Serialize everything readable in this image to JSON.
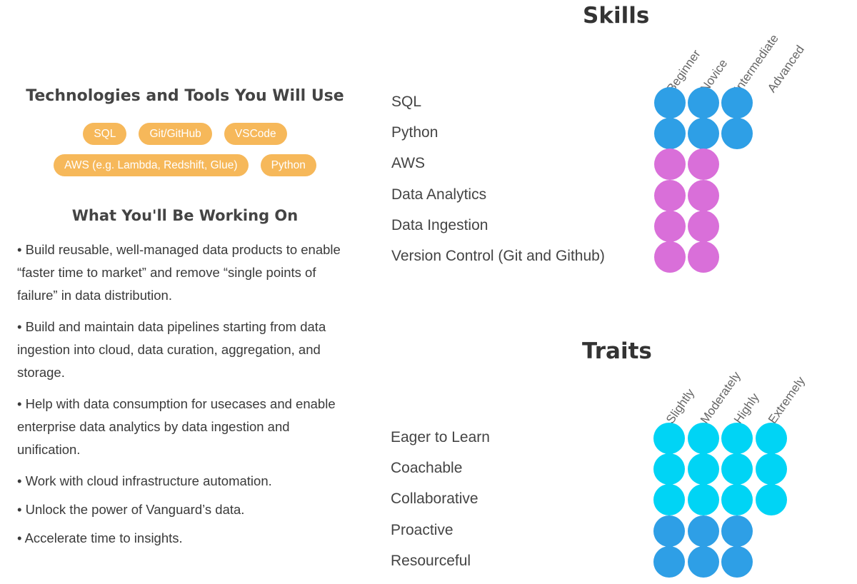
{
  "left": {
    "tech_title": "Technologies and Tools You Will Use",
    "tags_row_1": [
      "SQL",
      "Git/GitHub",
      "VSCode"
    ],
    "tags_row_2": [
      "AWS (e.g. Lambda, Redshift, Glue)",
      "Python"
    ],
    "work_title": "What You'll Be Working On",
    "bullets": [
      "• Build reusable, well-managed data products to enable “faster time to market” and remove “single points of failure” in data distribution.",
      "• Build and maintain data pipelines starting from data ingestion into cloud, data curation, aggregation, and storage.",
      "• Help with data consumption for usecases and enable enterprise data analytics by data ingestion and unification.",
      "• Work with cloud infrastructure automation.",
      "• Unlock the power of Vanguard’s data.",
      "• Accelerate time to insights."
    ]
  },
  "skills": {
    "title": "Skills",
    "levels": [
      "Beginner",
      "Novice",
      "Intermediate",
      "Advanced"
    ],
    "rows": [
      {
        "label": "SQL",
        "level": 3,
        "color": "#2e9fe6"
      },
      {
        "label": "Python",
        "level": 3,
        "color": "#2e9fe6"
      },
      {
        "label": "AWS",
        "level": 2,
        "color": "#d96fd9"
      },
      {
        "label": "Data Analytics",
        "level": 2,
        "color": "#d96fd9"
      },
      {
        "label": "Data Ingestion",
        "level": 2,
        "color": "#d96fd9"
      },
      {
        "label": "Version Control (Git and Github)",
        "level": 2,
        "color": "#d96fd9"
      }
    ]
  },
  "traits": {
    "title": "Traits",
    "levels": [
      "Slightly",
      "Moderately",
      "Highly",
      "Extremely"
    ],
    "rows": [
      {
        "label": "Eager to Learn",
        "level": 4,
        "color": "#00d4f5"
      },
      {
        "label": "Coachable",
        "level": 4,
        "color": "#00d4f5"
      },
      {
        "label": "Collaborative",
        "level": 4,
        "color": "#00d4f5"
      },
      {
        "label": "Proactive",
        "level": 3,
        "color": "#2e9fe6"
      },
      {
        "label": "Resourceful",
        "level": 3,
        "color": "#2e9fe6"
      }
    ]
  }
}
